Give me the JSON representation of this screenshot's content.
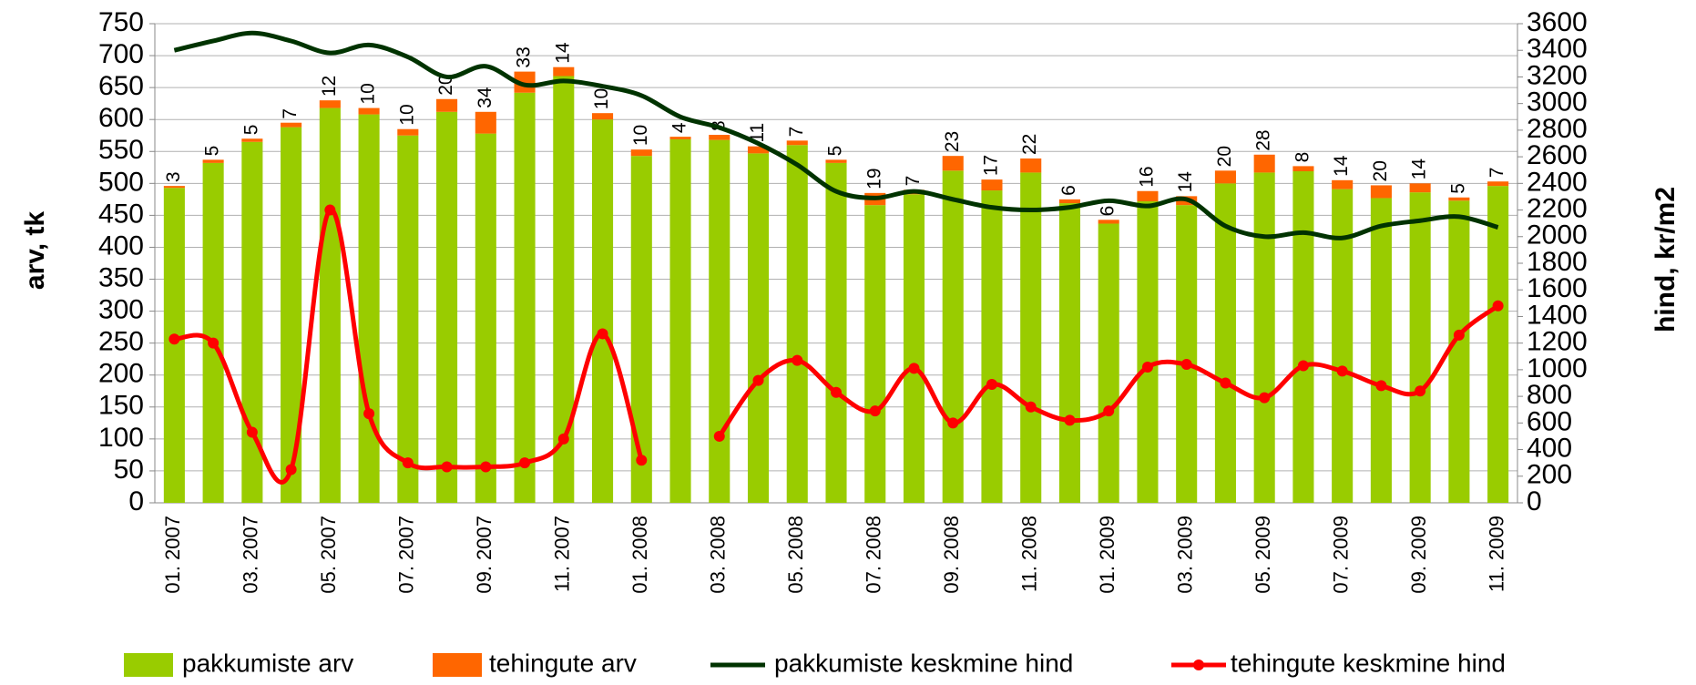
{
  "chart_data": {
    "type": "bar_line",
    "y_axis_label": "arv, tk",
    "y2_axis_label": "hind, kr/m2",
    "categories": [
      "01. 2007",
      null,
      "03. 2007",
      null,
      "05. 2007",
      null,
      "07. 2007",
      null,
      "09. 2007",
      null,
      "11. 2007",
      null,
      "01. 2008",
      null,
      "03. 2008",
      null,
      "05. 2008",
      null,
      "07. 2008",
      null,
      "09. 2008",
      null,
      "11. 2008",
      null,
      "01. 2009",
      null,
      "03. 2009",
      null,
      "05. 2009",
      null,
      "07. 2009",
      null,
      "09. 2009",
      null,
      "11. 2009"
    ],
    "series": [
      {
        "name": "pakkumiste arv",
        "type": "bar",
        "color": "#99cc00",
        "values": [
          493,
          532,
          565,
          588,
          618,
          608,
          575,
          612,
          578,
          642,
          668,
          600,
          543,
          569,
          568,
          547,
          560,
          532,
          466,
          483,
          520,
          489,
          517,
          469,
          437,
          472,
          466,
          500,
          517,
          519,
          491,
          477,
          486,
          473,
          496
        ]
      },
      {
        "name": "tehingute arv",
        "type": "bar",
        "color": "#ff6600",
        "values": [
          3,
          5,
          5,
          7,
          12,
          10,
          10,
          20,
          34,
          33,
          14,
          10,
          10,
          4,
          8,
          11,
          7,
          5,
          19,
          7,
          23,
          17,
          22,
          6,
          6,
          16,
          14,
          20,
          28,
          8,
          14,
          20,
          14,
          5,
          7
        ]
      },
      {
        "name": "pakkumiste keskmine hind",
        "type": "line",
        "axis": "y2",
        "color": "#003300",
        "values": [
          3400,
          3470,
          3530,
          3470,
          3380,
          3440,
          3350,
          3200,
          3280,
          3140,
          3170,
          3130,
          3060,
          2900,
          2820,
          2700,
          2540,
          2340,
          2290,
          2340,
          2280,
          2220,
          2200,
          2220,
          2270,
          2230,
          2280,
          2080,
          2000,
          2030,
          1990,
          2080,
          2120,
          2150,
          2070
        ]
      },
      {
        "name": "tehingute keskmine hind",
        "type": "line",
        "axis": "y2",
        "color": "#ff0000",
        "markers": true,
        "values": [
          1230,
          1200,
          530,
          250,
          2200,
          670,
          300,
          270,
          270,
          300,
          480,
          1270,
          320,
          null,
          500,
          920,
          1070,
          830,
          690,
          1010,
          600,
          890,
          720,
          620,
          690,
          1020,
          1040,
          900,
          790,
          1030,
          990,
          880,
          840,
          1260,
          1480
        ]
      }
    ],
    "ylim": [
      0,
      750
    ],
    "yticks": [
      0,
      50,
      100,
      150,
      200,
      250,
      300,
      350,
      400,
      450,
      500,
      550,
      600,
      650,
      700,
      750
    ],
    "y2lim": [
      0,
      3600
    ],
    "y2ticks": [
      0,
      200,
      400,
      600,
      800,
      1000,
      1200,
      1400,
      1600,
      1800,
      2000,
      2200,
      2400,
      2600,
      2800,
      3000,
      3200,
      3400,
      3600
    ],
    "grid": true,
    "legend": "bottom"
  }
}
